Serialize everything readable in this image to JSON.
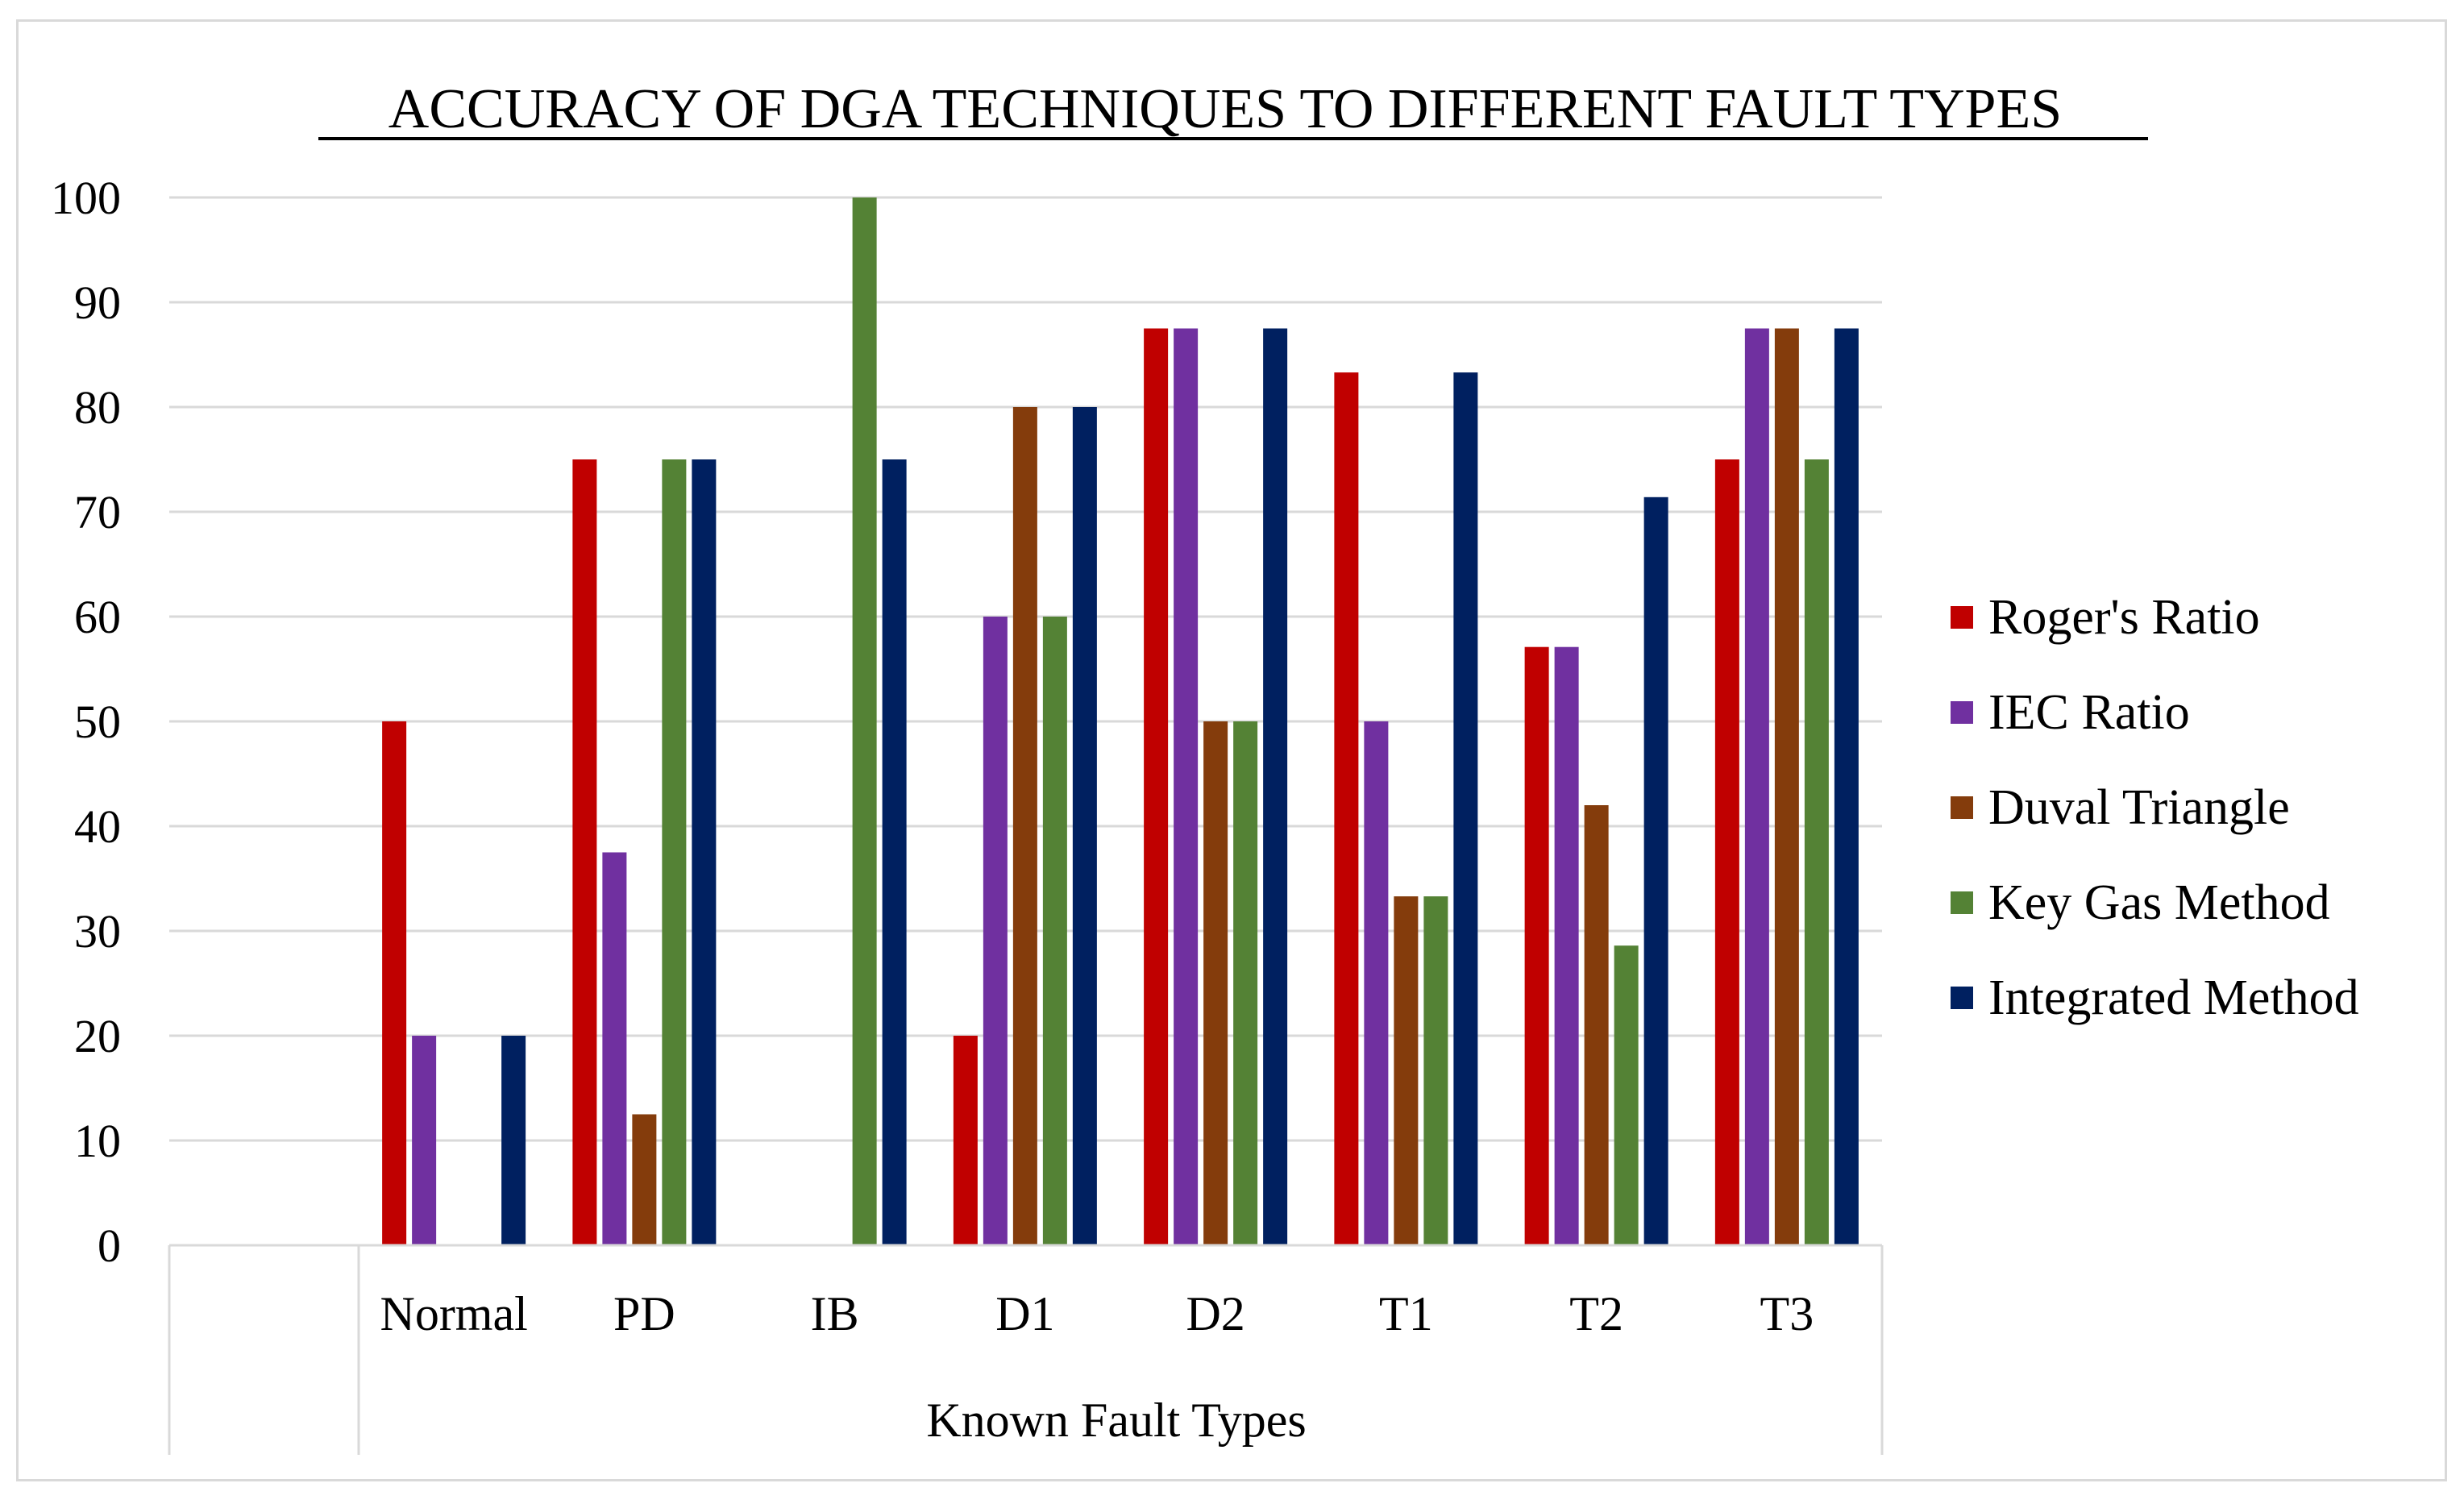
{
  "chart_data": {
    "type": "bar",
    "title": "ACCURACY OF DGA TECHNIQUES TO DIFFERENT FAULT TYPES",
    "xlabel": "Known Fault Types",
    "ylabel": "",
    "ylim": [
      0,
      100
    ],
    "yticks": [
      0,
      10,
      20,
      30,
      40,
      50,
      60,
      70,
      80,
      90,
      100
    ],
    "grid": true,
    "legend_position": "right",
    "categories": [
      "Normal",
      "PD",
      "IB",
      "D1",
      "D2",
      "T1",
      "T2",
      "T3"
    ],
    "series": [
      {
        "name": "Roger's Ratio",
        "color": "#c00000",
        "values": [
          50,
          75,
          0,
          20,
          87.5,
          83.3,
          57.1,
          75
        ]
      },
      {
        "name": "IEC Ratio",
        "color": "#7030a0",
        "values": [
          20,
          37.5,
          0,
          60,
          87.5,
          50,
          57.1,
          87.5
        ]
      },
      {
        "name": "Duval Triangle",
        "color": "#843c0c",
        "values": [
          0,
          12.5,
          0,
          80,
          50,
          33.3,
          42,
          87.5
        ]
      },
      {
        "name": "Key Gas Method",
        "color": "#548235",
        "values": [
          0,
          75,
          100,
          60,
          50,
          33.3,
          28.6,
          75
        ]
      },
      {
        "name": "Integrated Method",
        "color": "#002060",
        "values": [
          20,
          75,
          75,
          80,
          87.5,
          83.3,
          71.4,
          87.5
        ]
      }
    ]
  }
}
